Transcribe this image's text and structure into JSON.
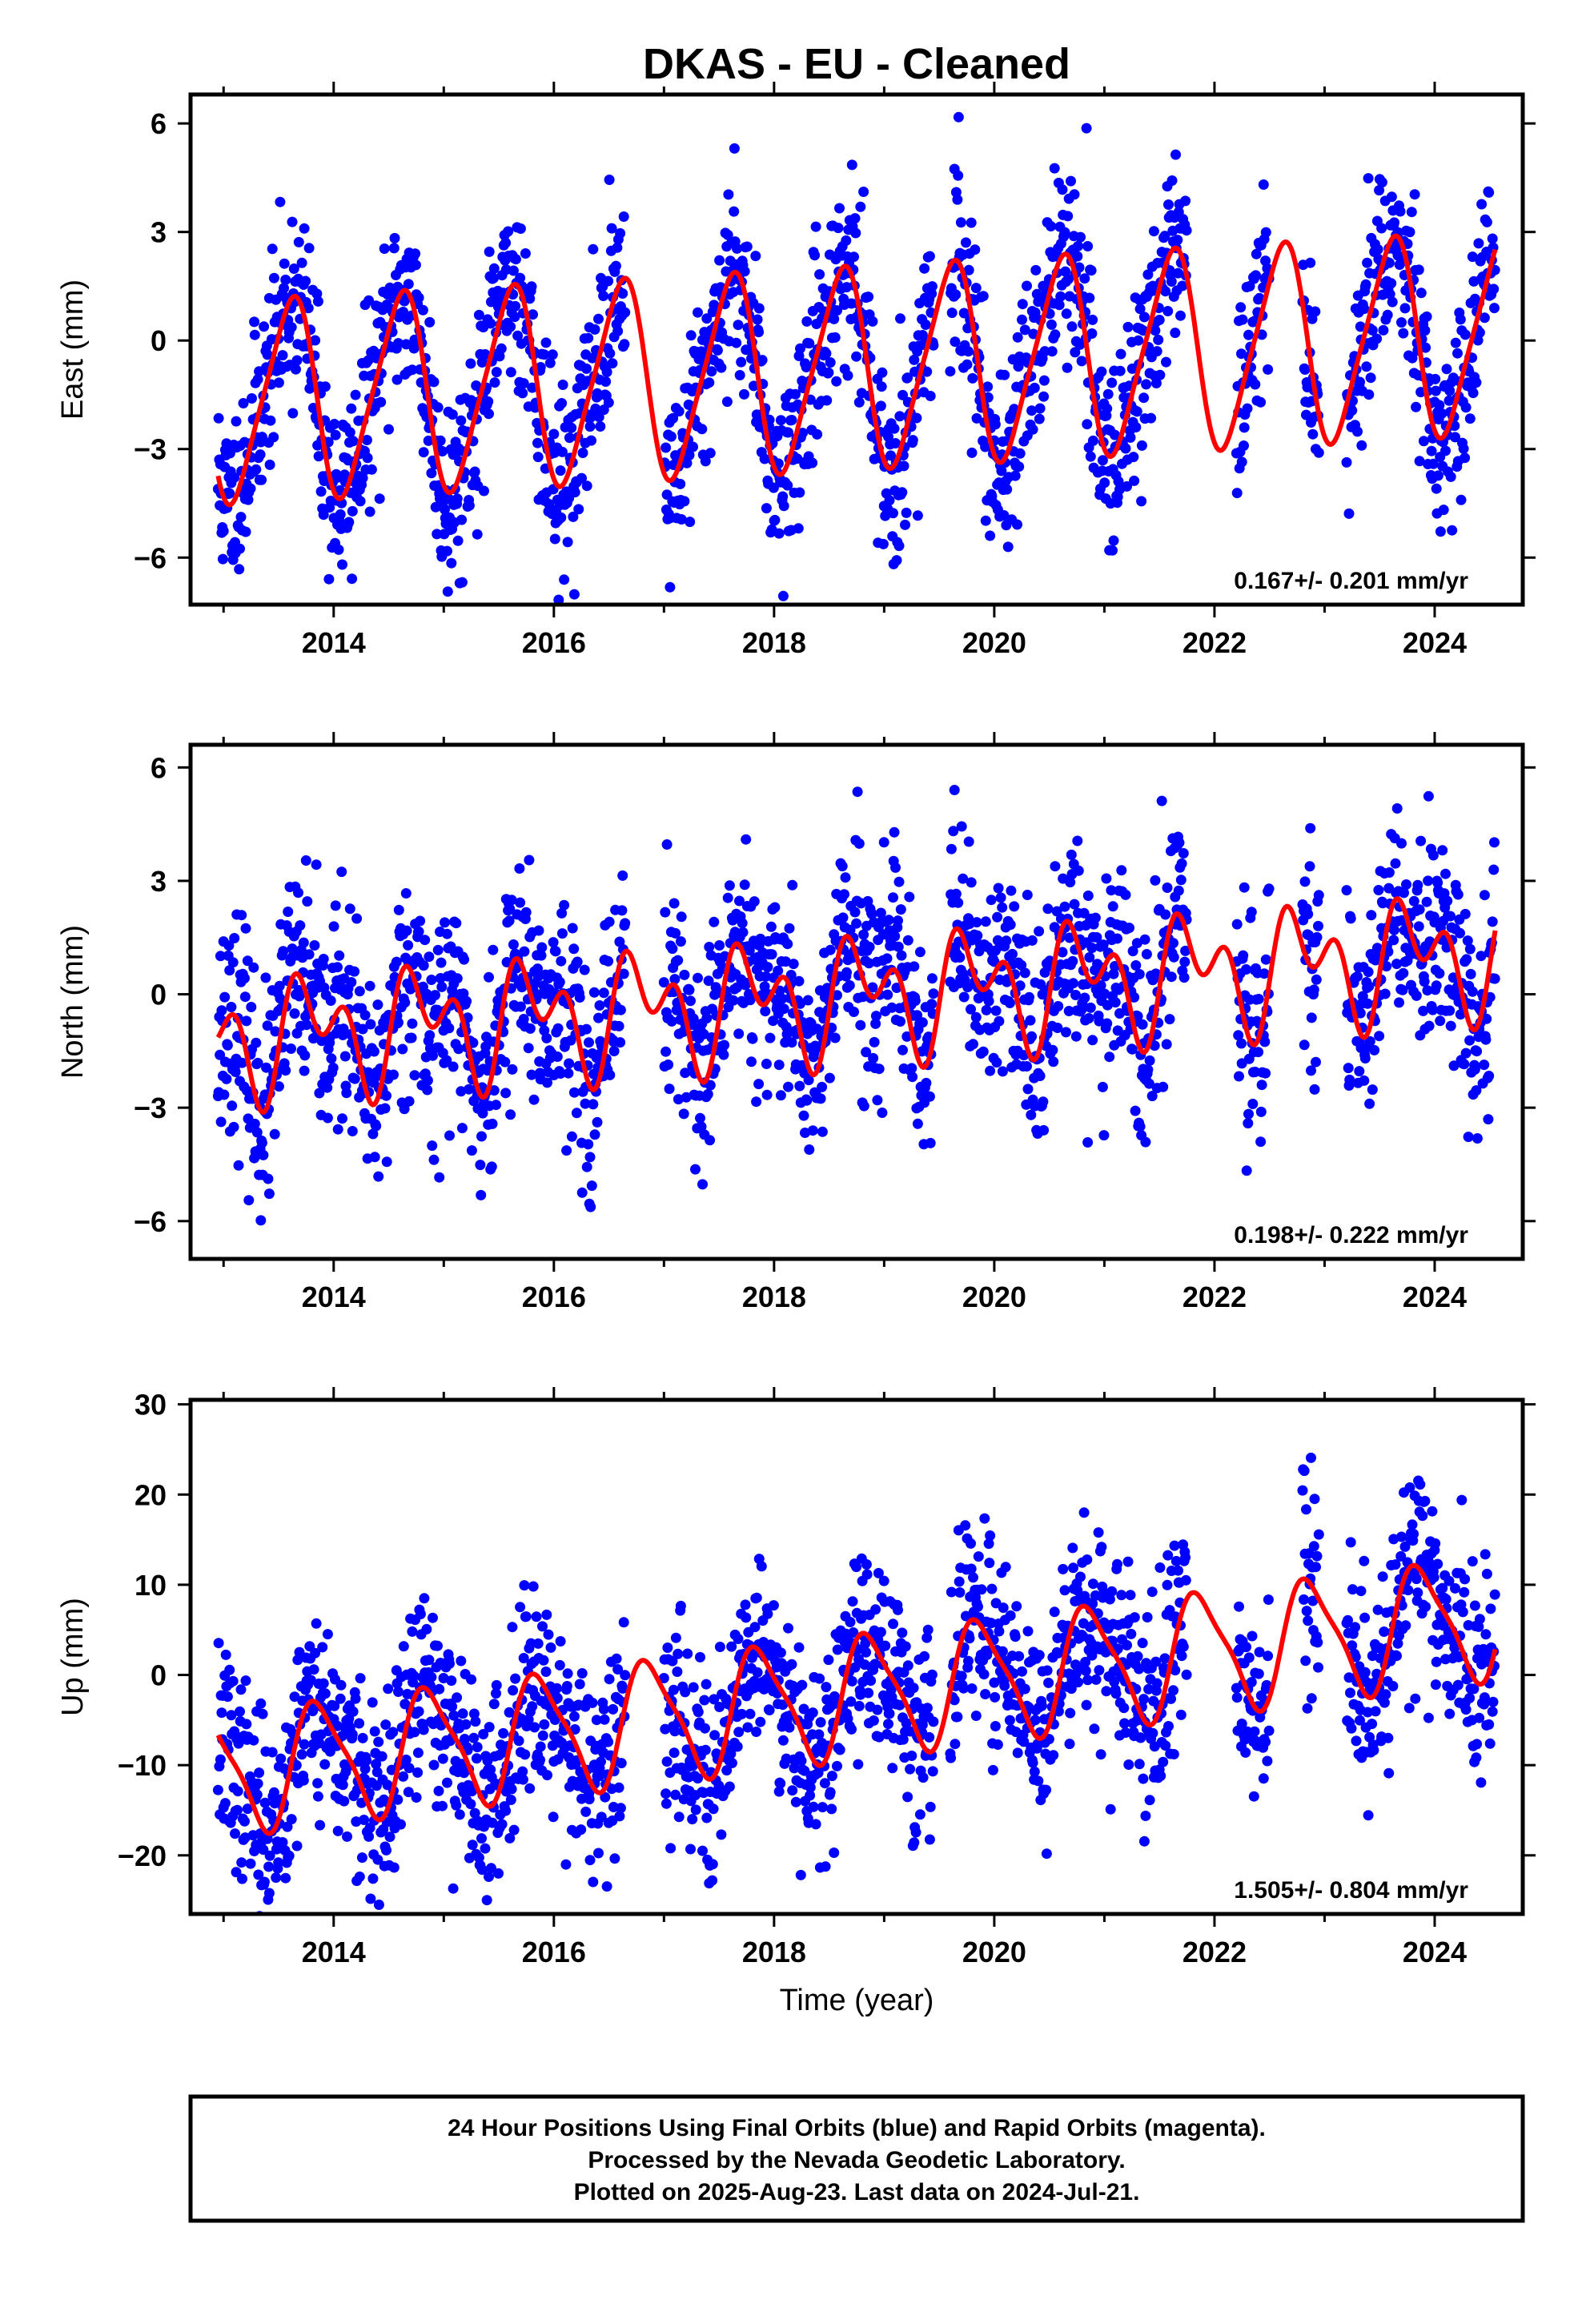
{
  "title": "DKAS  - EU - Cleaned",
  "x_axis_label": "Time (year)",
  "footer": {
    "lines": [
      "24 Hour Positions Using Final Orbits (blue) and Rapid Orbits (magenta).",
      "Processed by the Nevada Geodetic Laboratory.",
      "Plotted on 2025-Aug-23. Last data on 2024-Jul-21."
    ]
  },
  "colors": {
    "points": "#0000ff",
    "model": "#ff0000",
    "frame": "#000000"
  },
  "chart_data": [
    {
      "type": "scatter",
      "panel": "east",
      "ylabel": "East (mm)",
      "rate_label": "0.167+/- 0.201 mm/yr",
      "xlim": [
        2012.7,
        2024.8
      ],
      "ylim": [
        -7.3,
        6.8
      ],
      "xticks": [
        2014,
        2016,
        2018,
        2020,
        2022,
        2024
      ],
      "yticks": [
        -6,
        -3,
        0,
        3,
        6
      ],
      "ytick_labels": [
        "−6",
        "−3",
        "0",
        "3",
        "6"
      ],
      "model": {
        "rate": 0.167,
        "amp1": 2.7,
        "phase1_year": 0.35,
        "amp2": 0.45,
        "phase2_year": 0.1,
        "offset": -0.8,
        "ref_year": 2018.5
      },
      "data_segments": [
        [
          2012.95,
          2016.65
        ],
        [
          2017.0,
          2019.45
        ],
        [
          2019.6,
          2021.75
        ],
        [
          2022.2,
          2022.5
        ],
        [
          2022.8,
          2022.95
        ],
        [
          2023.2,
          2024.55
        ]
      ],
      "scatter": {
        "noise_sd": 1.3,
        "step_days": 2,
        "seed": 11
      }
    },
    {
      "type": "scatter",
      "panel": "north",
      "ylabel": "North (mm)",
      "rate_label": "0.198+/- 0.222 mm/yr",
      "xlim": [
        2012.7,
        2024.8
      ],
      "ylim": [
        -7.0,
        6.6
      ],
      "xticks": [
        2014,
        2016,
        2018,
        2020,
        2022,
        2024
      ],
      "yticks": [
        -6,
        -3,
        0,
        3,
        6
      ],
      "ytick_labels": [
        "−6",
        "−3",
        "0",
        "3",
        "6"
      ],
      "model": {
        "rate": 0.198,
        "amp1": 1.1,
        "phase1_year": 0.55,
        "amp2": 1.0,
        "phase2_year": 0.0,
        "offset": -0.1,
        "ref_year": 2018.5
      },
      "data_segments": [
        [
          2012.95,
          2016.65
        ],
        [
          2017.0,
          2019.45
        ],
        [
          2019.6,
          2021.75
        ],
        [
          2022.2,
          2022.5
        ],
        [
          2022.8,
          2022.95
        ],
        [
          2023.2,
          2024.55
        ]
      ],
      "scatter": {
        "noise_sd": 1.4,
        "step_days": 2,
        "seed": 23
      }
    },
    {
      "type": "scatter",
      "panel": "up",
      "ylabel": "Up (mm)",
      "rate_label": "1.505+/- 0.804 mm/yr",
      "xlim": [
        2012.7,
        2024.8
      ],
      "ylim": [
        -26.5,
        30.5
      ],
      "xticks": [
        2014,
        2016,
        2018,
        2020,
        2022,
        2024
      ],
      "yticks": [
        -20,
        -10,
        0,
        10,
        20,
        30
      ],
      "ytick_labels": [
        "−20",
        "−10",
        "0",
        "10",
        "20",
        "30"
      ],
      "model": {
        "rate": 1.505,
        "amp1": 6.5,
        "phase1_year": 0.62,
        "amp2": 1.5,
        "phase2_year": 0.1,
        "offset": -2.6,
        "ref_year": 2018.5
      },
      "data_segments": [
        [
          2012.95,
          2016.65
        ],
        [
          2017.0,
          2019.45
        ],
        [
          2019.6,
          2021.75
        ],
        [
          2022.2,
          2022.5
        ],
        [
          2022.8,
          2022.95
        ],
        [
          2023.2,
          2024.55
        ]
      ],
      "scatter": {
        "noise_sd": 5.5,
        "step_days": 2,
        "seed": 37
      }
    }
  ]
}
